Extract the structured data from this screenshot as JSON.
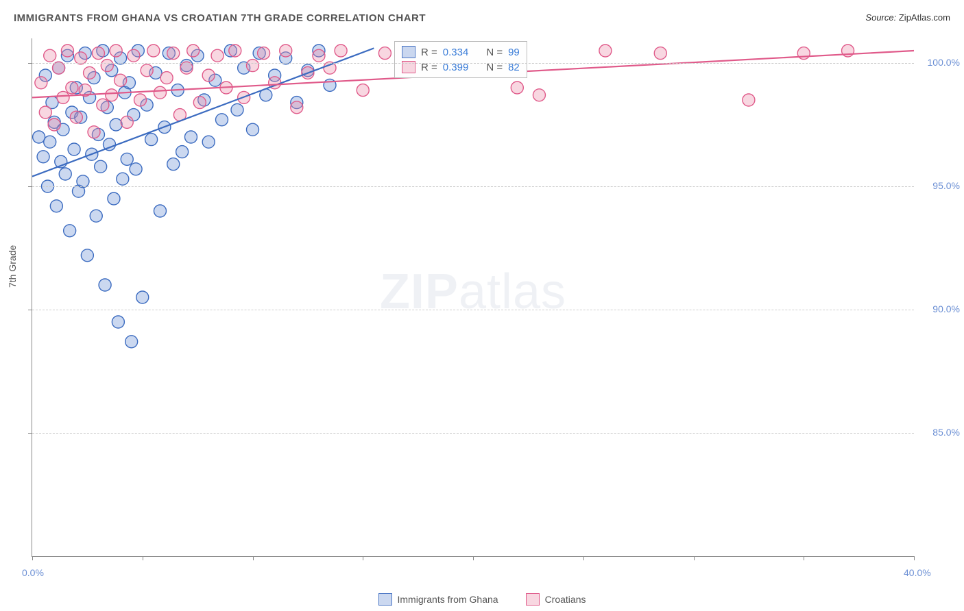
{
  "title": "IMMIGRANTS FROM GHANA VS CROATIAN 7TH GRADE CORRELATION CHART",
  "source_label": "Source:",
  "source_value": "ZipAtlas.com",
  "ylabel": "7th Grade",
  "watermark_bold": "ZIP",
  "watermark_light": "atlas",
  "chart": {
    "type": "scatter",
    "background_color": "#ffffff",
    "grid_color": "#cccccc",
    "axis_color": "#888888",
    "text_color": "#555555",
    "tick_label_color": "#6b8fd4",
    "xlim": [
      0,
      40
    ],
    "ylim": [
      80,
      101
    ],
    "xtick_step": 5,
    "xtick_labeled": [
      0,
      40
    ],
    "ytick_values": [
      85,
      90,
      95,
      100
    ],
    "x_format": "percent1",
    "y_format": "percent1",
    "marker_radius": 9,
    "marker_fill_opacity": 0.35,
    "marker_stroke_width": 1.4,
    "line_width": 2.2,
    "series": [
      {
        "name": "Immigrants from Ghana",
        "color_fill": "#6b8fd4",
        "color_stroke": "#3b6bc0",
        "R": 0.334,
        "N": 99,
        "trend": {
          "x1": 0,
          "y1": 95.4,
          "x2": 15.5,
          "y2": 100.6
        },
        "points": [
          [
            0.3,
            97.0
          ],
          [
            0.5,
            96.2
          ],
          [
            0.6,
            99.5
          ],
          [
            0.7,
            95.0
          ],
          [
            0.8,
            96.8
          ],
          [
            0.9,
            98.4
          ],
          [
            1.0,
            97.6
          ],
          [
            1.1,
            94.2
          ],
          [
            1.2,
            99.8
          ],
          [
            1.3,
            96.0
          ],
          [
            1.4,
            97.3
          ],
          [
            1.5,
            95.5
          ],
          [
            1.6,
            100.3
          ],
          [
            1.7,
            93.2
          ],
          [
            1.8,
            98.0
          ],
          [
            1.9,
            96.5
          ],
          [
            2.0,
            99.0
          ],
          [
            2.1,
            94.8
          ],
          [
            2.2,
            97.8
          ],
          [
            2.3,
            95.2
          ],
          [
            2.4,
            100.4
          ],
          [
            2.5,
            92.2
          ],
          [
            2.6,
            98.6
          ],
          [
            2.7,
            96.3
          ],
          [
            2.8,
            99.4
          ],
          [
            2.9,
            93.8
          ],
          [
            3.0,
            97.1
          ],
          [
            3.1,
            95.8
          ],
          [
            3.2,
            100.5
          ],
          [
            3.3,
            91.0
          ],
          [
            3.4,
            98.2
          ],
          [
            3.5,
            96.7
          ],
          [
            3.6,
            99.7
          ],
          [
            3.7,
            94.5
          ],
          [
            3.8,
            97.5
          ],
          [
            3.9,
            89.5
          ],
          [
            4.0,
            100.2
          ],
          [
            4.1,
            95.3
          ],
          [
            4.2,
            98.8
          ],
          [
            4.3,
            96.1
          ],
          [
            4.4,
            99.2
          ],
          [
            4.5,
            88.7
          ],
          [
            4.6,
            97.9
          ],
          [
            4.7,
            95.7
          ],
          [
            4.8,
            100.5
          ],
          [
            5.0,
            90.5
          ],
          [
            5.2,
            98.3
          ],
          [
            5.4,
            96.9
          ],
          [
            5.6,
            99.6
          ],
          [
            5.8,
            94.0
          ],
          [
            6.0,
            97.4
          ],
          [
            6.2,
            100.4
          ],
          [
            6.4,
            95.9
          ],
          [
            6.6,
            98.9
          ],
          [
            6.8,
            96.4
          ],
          [
            7.0,
            99.9
          ],
          [
            7.2,
            97.0
          ],
          [
            7.5,
            100.3
          ],
          [
            7.8,
            98.5
          ],
          [
            8.0,
            96.8
          ],
          [
            8.3,
            99.3
          ],
          [
            8.6,
            97.7
          ],
          [
            9.0,
            100.5
          ],
          [
            9.3,
            98.1
          ],
          [
            9.6,
            99.8
          ],
          [
            10.0,
            97.3
          ],
          [
            10.3,
            100.4
          ],
          [
            10.6,
            98.7
          ],
          [
            11.0,
            99.5
          ],
          [
            11.5,
            100.2
          ],
          [
            12.0,
            98.4
          ],
          [
            12.5,
            99.7
          ],
          [
            13.0,
            100.5
          ],
          [
            13.5,
            99.1
          ]
        ]
      },
      {
        "name": "Croatians",
        "color_fill": "#ec8caa",
        "color_stroke": "#e05a8a",
        "R": 0.399,
        "N": 82,
        "trend": {
          "x1": 0,
          "y1": 98.6,
          "x2": 40,
          "y2": 100.5
        },
        "points": [
          [
            0.4,
            99.2
          ],
          [
            0.6,
            98.0
          ],
          [
            0.8,
            100.3
          ],
          [
            1.0,
            97.5
          ],
          [
            1.2,
            99.8
          ],
          [
            1.4,
            98.6
          ],
          [
            1.6,
            100.5
          ],
          [
            1.8,
            99.0
          ],
          [
            2.0,
            97.8
          ],
          [
            2.2,
            100.2
          ],
          [
            2.4,
            98.9
          ],
          [
            2.6,
            99.6
          ],
          [
            2.8,
            97.2
          ],
          [
            3.0,
            100.4
          ],
          [
            3.2,
            98.3
          ],
          [
            3.4,
            99.9
          ],
          [
            3.6,
            98.7
          ],
          [
            3.8,
            100.5
          ],
          [
            4.0,
            99.3
          ],
          [
            4.3,
            97.6
          ],
          [
            4.6,
            100.3
          ],
          [
            4.9,
            98.5
          ],
          [
            5.2,
            99.7
          ],
          [
            5.5,
            100.5
          ],
          [
            5.8,
            98.8
          ],
          [
            6.1,
            99.4
          ],
          [
            6.4,
            100.4
          ],
          [
            6.7,
            97.9
          ],
          [
            7.0,
            99.8
          ],
          [
            7.3,
            100.5
          ],
          [
            7.6,
            98.4
          ],
          [
            8.0,
            99.5
          ],
          [
            8.4,
            100.3
          ],
          [
            8.8,
            99.0
          ],
          [
            9.2,
            100.5
          ],
          [
            9.6,
            98.6
          ],
          [
            10.0,
            99.9
          ],
          [
            10.5,
            100.4
          ],
          [
            11.0,
            99.2
          ],
          [
            11.5,
            100.5
          ],
          [
            12.0,
            98.2
          ],
          [
            12.5,
            99.6
          ],
          [
            13.0,
            100.3
          ],
          [
            13.5,
            99.8
          ],
          [
            14.0,
            100.5
          ],
          [
            15.0,
            98.9
          ],
          [
            16.0,
            100.4
          ],
          [
            22.0,
            99.0
          ],
          [
            23.0,
            98.7
          ],
          [
            26.0,
            100.5
          ],
          [
            28.5,
            100.4
          ],
          [
            32.5,
            98.5
          ],
          [
            35.0,
            100.4
          ],
          [
            37.0,
            100.5
          ]
        ]
      }
    ]
  },
  "legend_r_label": "R =",
  "legend_n_label": "N ="
}
